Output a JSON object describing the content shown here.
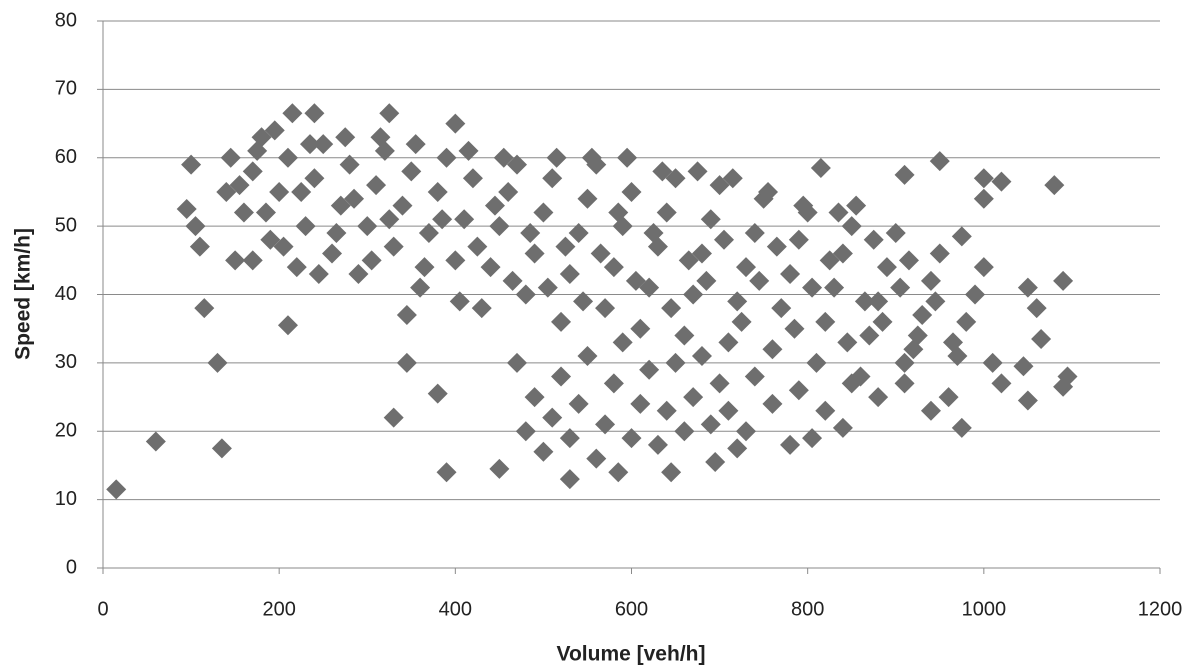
{
  "chart_data": {
    "type": "scatter",
    "x_label": "Volume [veh/h]",
    "y_label": "Speed [km/h]",
    "color": "#6e6e6e",
    "xlim": [
      0,
      1200
    ],
    "xticks": [
      0,
      200,
      400,
      600,
      800,
      1000,
      1200
    ],
    "ylim": [
      0,
      80
    ],
    "yticks": [
      0,
      10,
      20,
      30,
      40,
      50,
      60,
      70,
      80
    ],
    "grid": true,
    "x": [
      15,
      60,
      100,
      95,
      115,
      130,
      135,
      210,
      330,
      325,
      215,
      240,
      400,
      390,
      450,
      530,
      585,
      645,
      695,
      815,
      950,
      910,
      1000,
      1020,
      1080,
      1090,
      1050,
      1060,
      1065,
      1045,
      1050,
      1090,
      1095,
      1000,
      975,
      975,
      855,
      805,
      780,
      720,
      840,
      380,
      345,
      110,
      105,
      140,
      145,
      150,
      160,
      170,
      180,
      190,
      200,
      210,
      220,
      230,
      240,
      250,
      260,
      270,
      280,
      290,
      300,
      310,
      320,
      330,
      340,
      350,
      360,
      370,
      380,
      390,
      400,
      410,
      420,
      430,
      440,
      450,
      460,
      470,
      480,
      490,
      500,
      510,
      520,
      530,
      540,
      550,
      560,
      570,
      580,
      590,
      600,
      610,
      620,
      630,
      640,
      650,
      660,
      670,
      680,
      690,
      700,
      710,
      720,
      730,
      740,
      750,
      760,
      770,
      780,
      790,
      800,
      810,
      820,
      830,
      840,
      850,
      860,
      870,
      880,
      890,
      900,
      910,
      920,
      930,
      940,
      950,
      960,
      970,
      980,
      990,
      1000,
      1010,
      1020,
      470,
      480,
      490,
      500,
      510,
      520,
      530,
      540,
      550,
      560,
      570,
      580,
      590,
      600,
      610,
      620,
      630,
      640,
      650,
      660,
      670,
      680,
      690,
      700,
      710,
      730,
      740,
      760,
      790,
      820,
      850,
      880,
      910,
      940,
      170,
      185,
      205,
      225,
      245,
      265,
      285,
      305,
      325,
      345,
      365,
      385,
      405,
      425,
      445,
      465,
      485,
      505,
      525,
      545,
      565,
      585,
      605,
      625,
      645,
      665,
      685,
      705,
      725,
      745,
      765,
      785,
      805,
      825,
      845,
      865,
      885,
      905,
      925,
      945,
      965,
      155,
      175,
      195,
      235,
      275,
      315,
      355,
      415,
      455,
      515,
      555,
      595,
      635,
      675,
      715,
      755,
      795,
      835,
      875,
      915
    ],
    "values": [
      11.5,
      18.5,
      59,
      52.5,
      38,
      30,
      17.5,
      35.5,
      22,
      66.5,
      66.5,
      66.5,
      65,
      14,
      14.5,
      13,
      14,
      14,
      15.5,
      58.5,
      59.5,
      57.5,
      57,
      56.5,
      56,
      42,
      41,
      38,
      33.5,
      29.5,
      24.5,
      26.5,
      28,
      54,
      48.5,
      20.5,
      53,
      19,
      18,
      17.5,
      20.5,
      25.5,
      30,
      47,
      50,
      55,
      60,
      45,
      52,
      58,
      63,
      48,
      55,
      60,
      44,
      50,
      57,
      62,
      46,
      53,
      59,
      43,
      50,
      56,
      61,
      47,
      53,
      58,
      41,
      49,
      55,
      60,
      45,
      51,
      57,
      38,
      44,
      50,
      55,
      59,
      40,
      46,
      52,
      57,
      36,
      43,
      49,
      54,
      59,
      38,
      44,
      50,
      55,
      35,
      41,
      47,
      52,
      57,
      34,
      40,
      46,
      51,
      56,
      33,
      39,
      44,
      49,
      54,
      32,
      38,
      43,
      48,
      52,
      30,
      36,
      41,
      46,
      50,
      28,
      34,
      39,
      44,
      49,
      27,
      32,
      37,
      42,
      46,
      25,
      31,
      36,
      40,
      44,
      30,
      27,
      30,
      20,
      25,
      17,
      22,
      28,
      19,
      24,
      31,
      16,
      21,
      27,
      33,
      19,
      24,
      29,
      18,
      23,
      30,
      20,
      25,
      31,
      21,
      27,
      23,
      20,
      28,
      24,
      26,
      23,
      27,
      25,
      30,
      23,
      45,
      52,
      47,
      55,
      43,
      49,
      54,
      45,
      51,
      37,
      44,
      51,
      39,
      47,
      53,
      42,
      49,
      41,
      47,
      39,
      46,
      52,
      42,
      49,
      38,
      45,
      42,
      48,
      36,
      42,
      47,
      35,
      41,
      45,
      33,
      39,
      36,
      41,
      34,
      39,
      33,
      56,
      61,
      64,
      62,
      63,
      63,
      62,
      61,
      60,
      60,
      60,
      60,
      58,
      58,
      57,
      55,
      53,
      52,
      48,
      45
    ]
  }
}
